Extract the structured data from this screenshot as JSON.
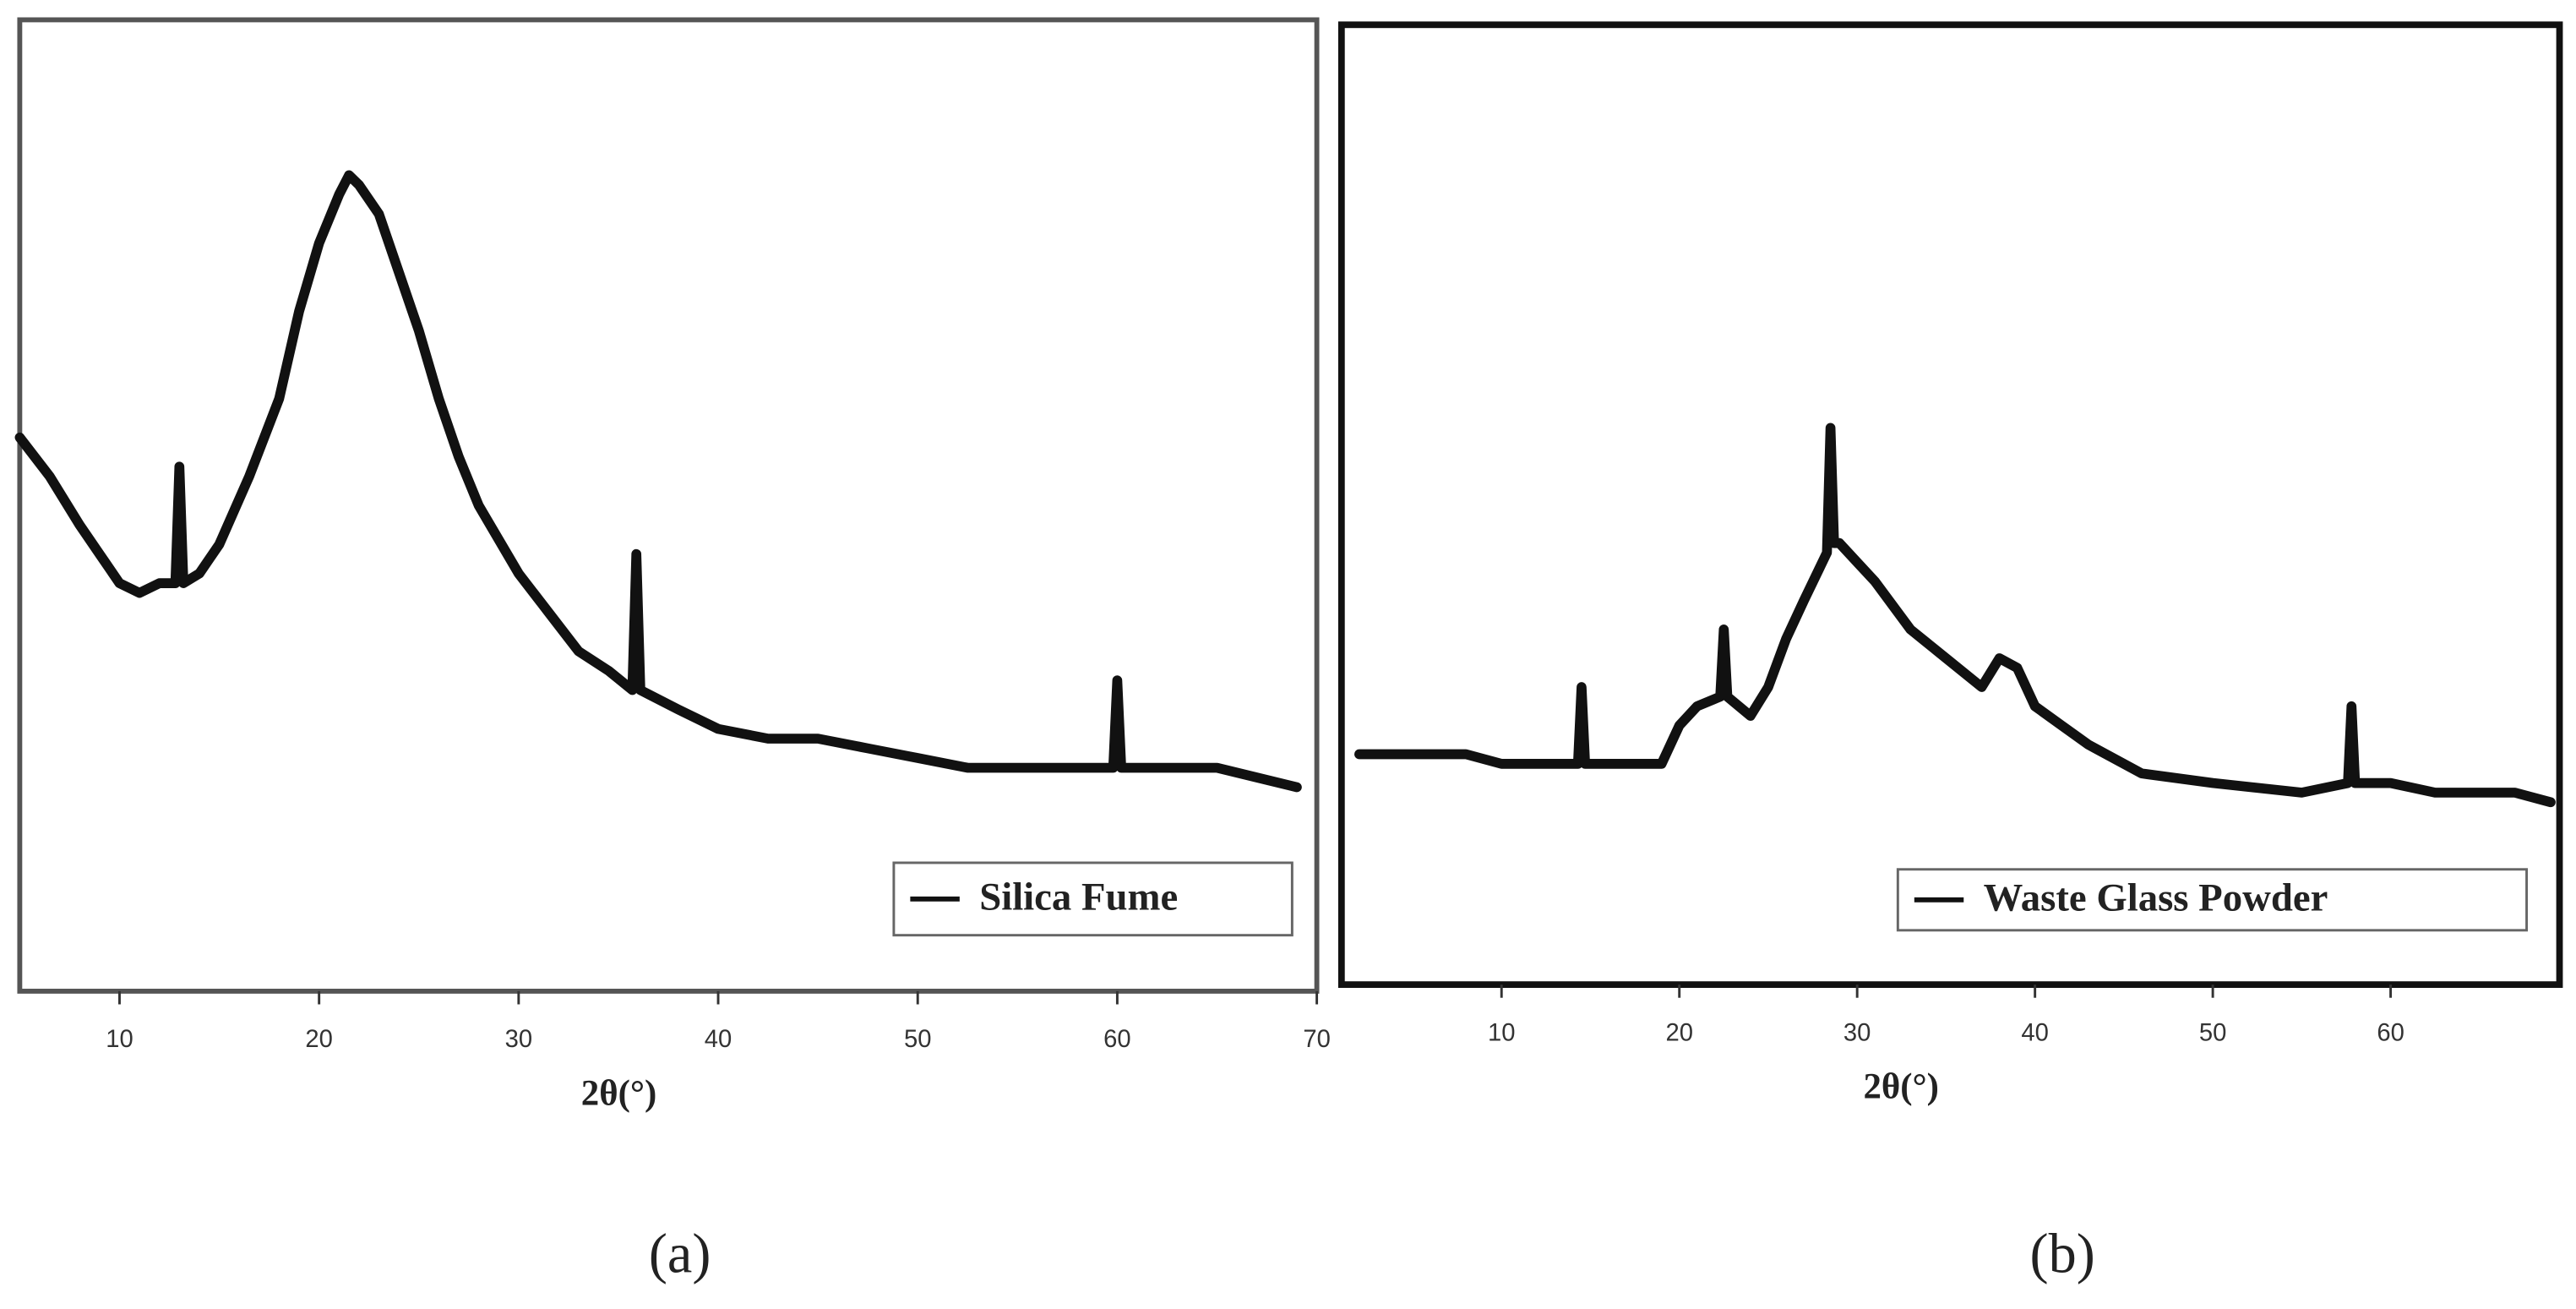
{
  "chart_data": [
    {
      "type": "line",
      "panel_label": "(a)",
      "x_label": "2θ(°)",
      "xlim": [
        5,
        70
      ],
      "ylim": [
        0,
        100
      ],
      "xticks": [
        10,
        20,
        30,
        40,
        50,
        60,
        70
      ],
      "legend": "lower right",
      "series": [
        {
          "name": "Silica Fume",
          "color": "#111111",
          "x": [
            5,
            6.5,
            8,
            9,
            10,
            11,
            12,
            12.8,
            13,
            13.2,
            14,
            15,
            16.5,
            18,
            19,
            20,
            21,
            21.5,
            22,
            23,
            24,
            25,
            26,
            27,
            28,
            30,
            31.5,
            33,
            34.5,
            35.7,
            35.9,
            36.1,
            38,
            40,
            42.5,
            45,
            47.5,
            50,
            52.5,
            55,
            57.5,
            59.8,
            60,
            60.2,
            62.5,
            65,
            67,
            69
          ],
          "values": [
            57,
            53,
            48,
            45,
            42,
            41,
            42,
            42,
            54,
            42,
            43,
            46,
            53,
            61,
            70,
            77,
            82,
            84,
            83,
            80,
            74,
            68,
            61,
            55,
            50,
            43,
            39,
            35,
            33,
            31,
            45,
            31,
            29,
            27,
            26,
            26,
            25,
            24,
            23,
            23,
            23,
            23,
            32,
            23,
            23,
            23,
            22,
            21
          ]
        }
      ]
    },
    {
      "type": "line",
      "panel_label": "(b)",
      "x_label": "2θ(°)",
      "xlim": [
        1,
        69.5
      ],
      "ylim": [
        0,
        100
      ],
      "xticks": [
        10,
        20,
        30,
        40,
        50,
        60
      ],
      "legend": "lower right",
      "series": [
        {
          "name": "Waste Glass Powder",
          "color": "#111111",
          "x": [
            2,
            5,
            8,
            10,
            12,
            14.3,
            14.5,
            14.7,
            17,
            19,
            20,
            21,
            22.3,
            22.5,
            22.7,
            24,
            25,
            26,
            27,
            28.3,
            28.5,
            28.7,
            29,
            30,
            31,
            33,
            35,
            37,
            38,
            39,
            40,
            41.5,
            43,
            46,
            50,
            55,
            57.6,
            57.8,
            58,
            60,
            62.5,
            65,
            67,
            69
          ],
          "values": [
            24,
            24,
            24,
            23,
            23,
            23,
            31,
            23,
            23,
            23,
            27,
            29,
            30,
            37,
            30,
            28,
            31,
            36,
            40,
            45,
            58,
            46,
            46,
            44,
            42,
            37,
            34,
            31,
            34,
            33,
            29,
            27,
            25,
            22,
            21,
            20,
            21,
            29,
            21,
            21,
            20,
            20,
            20,
            19
          ]
        }
      ]
    }
  ]
}
